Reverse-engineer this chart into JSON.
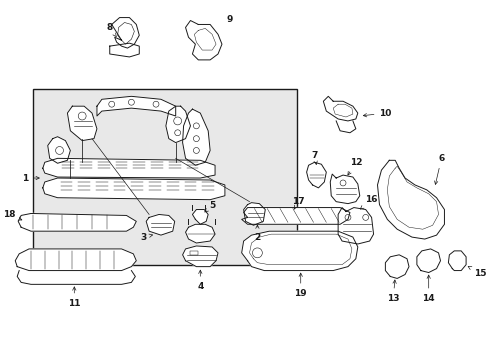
{
  "background_color": "#ffffff",
  "line_color": "#1a1a1a",
  "box_fill": "#e8e8e8",
  "fig_width": 4.89,
  "fig_height": 3.6,
  "dpi": 100,
  "label_fontsize": 6.5,
  "lw": 0.7
}
